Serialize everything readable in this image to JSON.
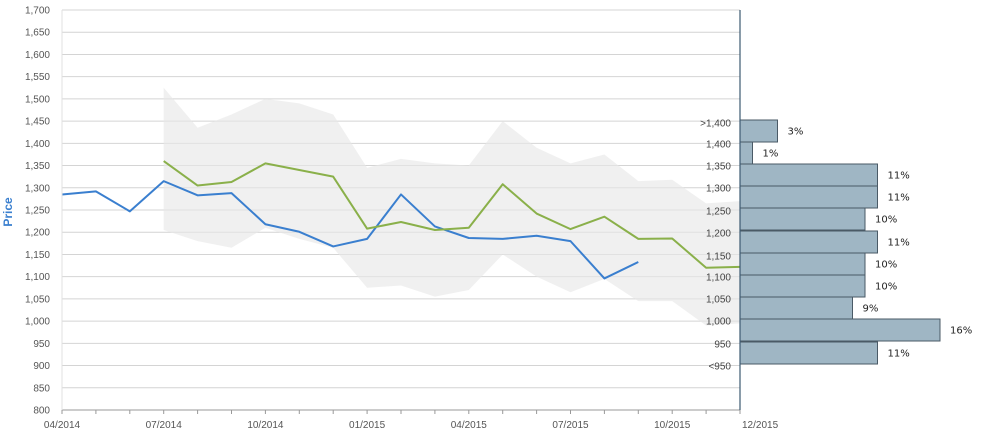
{
  "chart_data": {
    "type": "line",
    "ylabel": "Price",
    "xlabel": "",
    "ylim": [
      800,
      1700
    ],
    "y_ticks": [
      "1,700",
      "1,650",
      "1,600",
      "1,550",
      "1,500",
      "1,450",
      "1,400",
      "1,350",
      "1,300",
      "1,250",
      "1,200",
      "1,150",
      "1,100",
      "1,050",
      "1,000",
      "950",
      "900",
      "850",
      "800"
    ],
    "x_tick_labels": [
      "04/2014",
      "07/2014",
      "10/2014",
      "01/2015",
      "04/2015",
      "07/2015",
      "10/2015",
      "12/2015"
    ],
    "x_months": [
      "2014-04",
      "2014-05",
      "2014-06",
      "2014-07",
      "2014-08",
      "2014-09",
      "2014-10",
      "2014-11",
      "2014-12",
      "2015-01",
      "2015-02",
      "2015-03",
      "2015-04",
      "2015-05",
      "2015-06",
      "2015-07",
      "2015-08",
      "2015-09",
      "2015-10",
      "2015-11",
      "2015-12"
    ],
    "grid": true,
    "series": [
      {
        "color": "#3a7fcf",
        "x": [
          "2014-04",
          "2014-05",
          "2014-06",
          "2014-07",
          "2014-08",
          "2014-09",
          "2014-10",
          "2014-11",
          "2014-12",
          "2015-01",
          "2015-02",
          "2015-03",
          "2015-04",
          "2015-05",
          "2015-06",
          "2015-07",
          "2015-08",
          "2015-09"
        ],
        "values": [
          1285,
          1292,
          1247,
          1315,
          1283,
          1288,
          1218,
          1201,
          1168,
          1185,
          1285,
          1213,
          1187,
          1185,
          1192,
          1180,
          1096,
          1133
        ]
      },
      {
        "color": "#8ab04a",
        "x": [
          "2014-07",
          "2014-08",
          "2014-09",
          "2014-10",
          "2014-11",
          "2014-12",
          "2015-01",
          "2015-02",
          "2015-03",
          "2015-04",
          "2015-05",
          "2015-06",
          "2015-07",
          "2015-08",
          "2015-09",
          "2015-10",
          "2015-11",
          "2015-12"
        ],
        "values": [
          1360,
          1305,
          1313,
          1355,
          1340,
          1325,
          1208,
          1223,
          1205,
          1210,
          1308,
          1242,
          1207,
          1235,
          1185,
          1186,
          1120,
          1122
        ]
      }
    ],
    "band": {
      "color": "#e8e8e8",
      "x": [
        "2014-07",
        "2014-08",
        "2014-09",
        "2014-10",
        "2014-11",
        "2014-12",
        "2015-01",
        "2015-02",
        "2015-03",
        "2015-04",
        "2015-05",
        "2015-06",
        "2015-07",
        "2015-08",
        "2015-09",
        "2015-10",
        "2015-11",
        "2015-12"
      ],
      "upper": [
        1525,
        1435,
        1465,
        1500,
        1490,
        1465,
        1345,
        1365,
        1355,
        1350,
        1450,
        1390,
        1355,
        1375,
        1315,
        1318,
        1265,
        1270
      ],
      "lower": [
        1205,
        1180,
        1165,
        1210,
        1185,
        1165,
        1075,
        1080,
        1055,
        1070,
        1150,
        1100,
        1065,
        1095,
        1045,
        1045,
        990,
        995
      ]
    },
    "distribution": {
      "color": "#9fb6c4",
      "ranges": [
        ">1,400",
        "1,400",
        "1,350",
        "1,300",
        "1,250",
        "1,200",
        "1,150",
        "1,100",
        "1,050",
        "1,000",
        "950",
        "<950"
      ],
      "percents": [
        "3%",
        "1%",
        "11%",
        "11%",
        "10%",
        "11%",
        "10%",
        "10%",
        "9%",
        "16%",
        "",
        "11%"
      ],
      "values": [
        3,
        1,
        11,
        11,
        10,
        11,
        10,
        10,
        9,
        16,
        0,
        11
      ]
    }
  }
}
